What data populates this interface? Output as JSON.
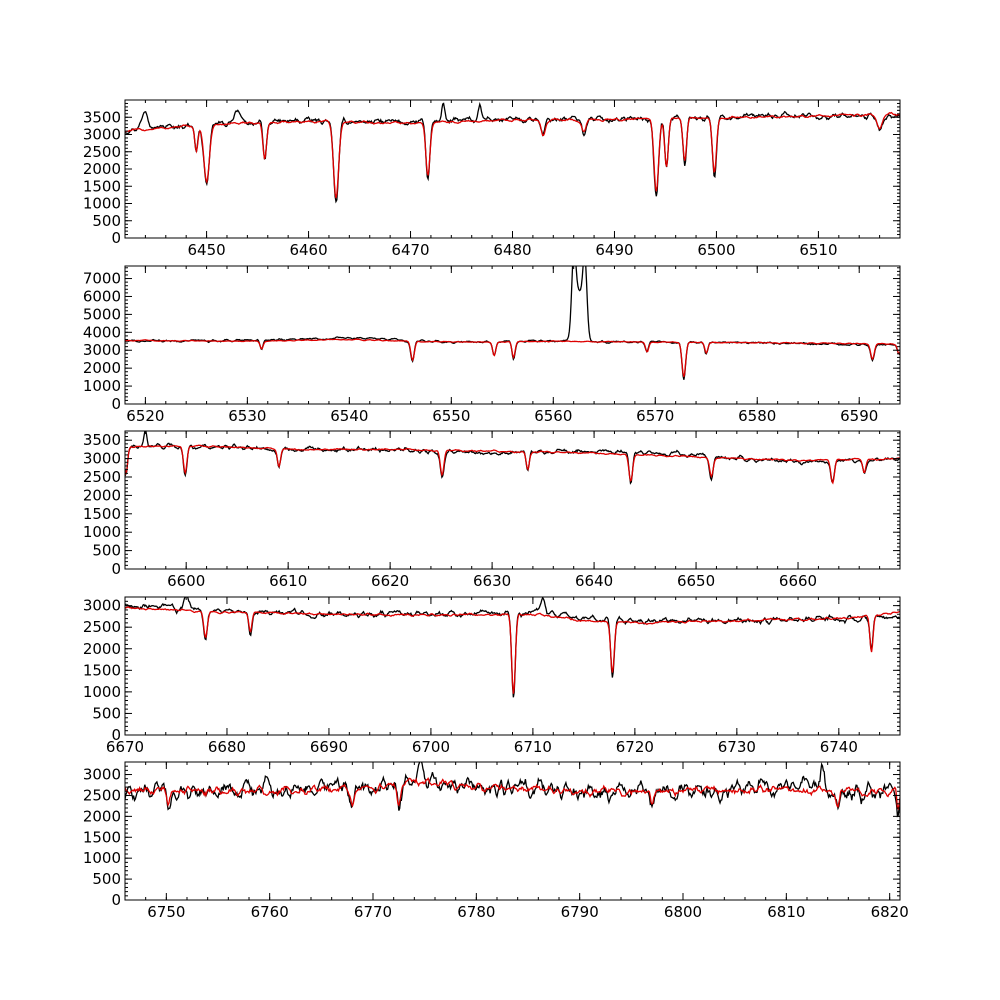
{
  "colors": {
    "observed": "#000000",
    "model": "#dd0000"
  },
  "chart_data": [
    {
      "type": "line",
      "title": "",
      "xlabel": "",
      "ylabel": "",
      "xlim": [
        6442,
        6518
      ],
      "ylim": [
        0,
        4000
      ],
      "grid": false,
      "xticks": [
        6450,
        6460,
        6470,
        6480,
        6490,
        6500,
        6510
      ],
      "yticks": [
        0,
        500,
        1000,
        1500,
        2000,
        2500,
        3000,
        3500
      ],
      "continuum": {
        "observed": [
          [
            6442,
            3150
          ],
          [
            6450,
            3300
          ],
          [
            6460,
            3400
          ],
          [
            6470,
            3350
          ],
          [
            6480,
            3450
          ],
          [
            6490,
            3450
          ],
          [
            6500,
            3500
          ],
          [
            6510,
            3550
          ],
          [
            6518,
            3500
          ]
        ],
        "model": [
          [
            6442,
            3100
          ],
          [
            6450,
            3280
          ],
          [
            6460,
            3380
          ],
          [
            6470,
            3330
          ],
          [
            6480,
            3420
          ],
          [
            6490,
            3430
          ],
          [
            6500,
            3480
          ],
          [
            6510,
            3540
          ],
          [
            6518,
            3600
          ]
        ]
      },
      "lines": [
        [
          6450.0,
          1650,
          0.55
        ],
        [
          6455.7,
          2300,
          0.35
        ],
        [
          6462.7,
          1150,
          0.5
        ],
        [
          6471.7,
          1800,
          0.4
        ],
        [
          6494.1,
          1350,
          0.45
        ],
        [
          6495.1,
          2100,
          0.35
        ],
        [
          6496.9,
          2250,
          0.35
        ],
        [
          6499.8,
          1900,
          0.4
        ],
        [
          6449.0,
          2500,
          0.3
        ],
        [
          6483.0,
          3000,
          0.4
        ],
        [
          6487.0,
          3050,
          0.4
        ],
        [
          6516.0,
          3150,
          0.5
        ]
      ],
      "features": [
        [
          6444,
          3750,
          0.6
        ],
        [
          6453,
          3650,
          0.6
        ],
        [
          6473.2,
          3950,
          0.3
        ],
        [
          6476.8,
          3800,
          0.3
        ]
      ],
      "noise": {
        "observed": 100,
        "model": 40
      },
      "series": [
        {
          "name": "",
          "role": "observed"
        },
        {
          "name": "",
          "role": "model"
        }
      ]
    },
    {
      "type": "line",
      "title": "",
      "xlabel": "",
      "ylabel": "",
      "xlim": [
        6518,
        6594
      ],
      "ylim": [
        0,
        7700
      ],
      "grid": false,
      "xticks": [
        6520,
        6530,
        6540,
        6550,
        6560,
        6570,
        6580,
        6590
      ],
      "yticks": [
        0,
        1000,
        2000,
        3000,
        4000,
        5000,
        6000,
        7000
      ],
      "continuum": {
        "observed": [
          [
            6518,
            3500
          ],
          [
            6530,
            3550
          ],
          [
            6540,
            3700
          ],
          [
            6550,
            3450
          ],
          [
            6560,
            3500
          ],
          [
            6570,
            3450
          ],
          [
            6580,
            3400
          ],
          [
            6594,
            3300
          ]
        ],
        "model": [
          [
            6518,
            3550
          ],
          [
            6530,
            3500
          ],
          [
            6540,
            3600
          ],
          [
            6550,
            3450
          ],
          [
            6560,
            3500
          ],
          [
            6570,
            3450
          ],
          [
            6580,
            3420
          ],
          [
            6594,
            3350
          ]
        ]
      },
      "lines": [
        [
          6531.4,
          3050,
          0.3
        ],
        [
          6546.2,
          2450,
          0.35
        ],
        [
          6554.2,
          2700,
          0.3
        ],
        [
          6556.1,
          2600,
          0.3
        ],
        [
          6569.2,
          2900,
          0.3
        ],
        [
          6572.8,
          1500,
          0.35
        ],
        [
          6575.0,
          2850,
          0.3
        ],
        [
          6591.3,
          2500,
          0.35
        ],
        [
          6593.9,
          2800,
          0.3
        ]
      ],
      "features": [
        [
          6562.0,
          7500,
          0.4
        ],
        [
          6563.1,
          7500,
          0.4
        ],
        [
          6562.5,
          6200,
          0.8
        ]
      ],
      "noise": {
        "observed": 70,
        "model": 30
      },
      "series": [
        {
          "name": "",
          "role": "observed"
        },
        {
          "name": "",
          "role": "model"
        }
      ]
    },
    {
      "type": "line",
      "title": "",
      "xlabel": "",
      "ylabel": "",
      "xlim": [
        6594,
        6670
      ],
      "ylim": [
        0,
        3750
      ],
      "grid": false,
      "xticks": [
        6600,
        6610,
        6620,
        6630,
        6640,
        6650,
        6660
      ],
      "yticks": [
        0,
        500,
        1000,
        1500,
        2000,
        2500,
        3000,
        3500
      ],
      "continuum": {
        "observed": [
          [
            6594,
            3300
          ],
          [
            6600,
            3350
          ],
          [
            6610,
            3250
          ],
          [
            6620,
            3250
          ],
          [
            6630,
            3150
          ],
          [
            6640,
            3200
          ],
          [
            6650,
            3100
          ],
          [
            6660,
            2900
          ],
          [
            6670,
            3000
          ]
        ],
        "model": [
          [
            6594,
            3300
          ],
          [
            6600,
            3350
          ],
          [
            6610,
            3250
          ],
          [
            6620,
            3250
          ],
          [
            6630,
            3200
          ],
          [
            6640,
            3150
          ],
          [
            6650,
            3050
          ],
          [
            6660,
            2950
          ],
          [
            6670,
            3000
          ]
        ]
      },
      "lines": [
        [
          6594.1,
          2600,
          0.3
        ],
        [
          6599.9,
          2600,
          0.35
        ],
        [
          6609.1,
          2800,
          0.3
        ],
        [
          6625.1,
          2550,
          0.35
        ],
        [
          6633.5,
          2700,
          0.3
        ],
        [
          6643.6,
          2400,
          0.35
        ],
        [
          6651.5,
          2500,
          0.35
        ],
        [
          6663.4,
          2350,
          0.35
        ],
        [
          6666.5,
          2600,
          0.3
        ]
      ],
      "features": [
        [
          6596.0,
          3750,
          0.3
        ]
      ],
      "noise": {
        "observed": 70,
        "model": 25
      },
      "series": [
        {
          "name": "",
          "role": "observed"
        },
        {
          "name": "",
          "role": "model"
        }
      ]
    },
    {
      "type": "line",
      "title": "",
      "xlabel": "",
      "ylabel": "",
      "xlim": [
        6670,
        6746
      ],
      "ylim": [
        0,
        3200
      ],
      "grid": false,
      "xticks": [
        6670,
        6680,
        6690,
        6700,
        6710,
        6720,
        6730,
        6740
      ],
      "yticks": [
        0,
        500,
        1000,
        1500,
        2000,
        2500,
        3000
      ],
      "continuum": {
        "observed": [
          [
            6670,
            3000
          ],
          [
            6680,
            2900
          ],
          [
            6690,
            2800
          ],
          [
            6700,
            2800
          ],
          [
            6710,
            2850
          ],
          [
            6715,
            2700
          ],
          [
            6720,
            2650
          ],
          [
            6730,
            2650
          ],
          [
            6740,
            2700
          ],
          [
            6746,
            2750
          ]
        ],
        "model": [
          [
            6670,
            2950
          ],
          [
            6680,
            2850
          ],
          [
            6690,
            2800
          ],
          [
            6700,
            2780
          ],
          [
            6710,
            2800
          ],
          [
            6715,
            2650
          ],
          [
            6720,
            2600
          ],
          [
            6730,
            2650
          ],
          [
            6740,
            2700
          ],
          [
            6746,
            2850
          ]
        ]
      },
      "lines": [
        [
          6677.9,
          2250,
          0.35
        ],
        [
          6682.3,
          2400,
          0.3
        ],
        [
          6708.1,
          950,
          0.35
        ],
        [
          6717.8,
          1450,
          0.35
        ],
        [
          6743.2,
          1950,
          0.3
        ]
      ],
      "features": [
        [
          6676.0,
          3200,
          0.5
        ],
        [
          6711.0,
          3150,
          0.4
        ]
      ],
      "noise": {
        "observed": 80,
        "model": 30
      },
      "series": [
        {
          "name": "",
          "role": "observed"
        },
        {
          "name": "",
          "role": "model"
        }
      ]
    },
    {
      "type": "line",
      "title": "",
      "xlabel": "",
      "ylabel": "",
      "xlim": [
        6746,
        6821
      ],
      "ylim": [
        0,
        3300
      ],
      "grid": false,
      "xticks": [
        6750,
        6760,
        6770,
        6780,
        6790,
        6800,
        6810,
        6820
      ],
      "yticks": [
        0,
        500,
        1000,
        1500,
        2000,
        2500,
        3000
      ],
      "continuum": {
        "observed": [
          [
            6746,
            2600
          ],
          [
            6760,
            2650
          ],
          [
            6770,
            2700
          ],
          [
            6775,
            2850
          ],
          [
            6780,
            2750
          ],
          [
            6790,
            2550
          ],
          [
            6800,
            2600
          ],
          [
            6810,
            2700
          ],
          [
            6821,
            2550
          ]
        ],
        "model": [
          [
            6746,
            2600
          ],
          [
            6760,
            2620
          ],
          [
            6770,
            2680
          ],
          [
            6775,
            2800
          ],
          [
            6780,
            2700
          ],
          [
            6790,
            2600
          ],
          [
            6800,
            2620
          ],
          [
            6810,
            2650
          ],
          [
            6821,
            2600
          ]
        ]
      },
      "lines": [
        [
          6750.2,
          2300,
          0.3
        ],
        [
          6768.0,
          2250,
          0.3
        ],
        [
          6772.5,
          2300,
          0.3
        ],
        [
          6797.0,
          2250,
          0.3
        ],
        [
          6815.0,
          2250,
          0.3
        ],
        [
          6820.8,
          2200,
          0.2
        ]
      ],
      "features": [
        [
          6774.6,
          3250,
          0.4
        ],
        [
          6813.5,
          3150,
          0.4
        ]
      ],
      "noise": {
        "observed": 230,
        "model": 110
      },
      "series": [
        {
          "name": "",
          "role": "observed"
        },
        {
          "name": "",
          "role": "model"
        }
      ]
    }
  ]
}
